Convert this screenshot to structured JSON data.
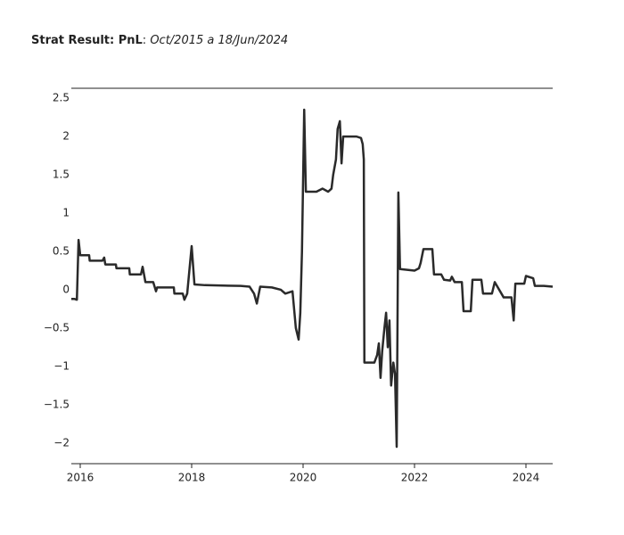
{
  "chart_data": {
    "type": "line",
    "title_parts": [
      "Strat Result: PnL",
      ": ",
      "Oct/2015 a 18/Jun/2024"
    ],
    "x": [
      2015.84,
      2015.9,
      2015.94,
      2015.97,
      2016.0,
      2016.16,
      2016.17,
      2016.4,
      2016.43,
      2016.45,
      2016.64,
      2016.65,
      2016.88,
      2016.89,
      2017.09,
      2017.12,
      2017.17,
      2017.31,
      2017.36,
      2017.38,
      2017.68,
      2017.69,
      2017.84,
      2017.87,
      2017.92,
      2018.0,
      2018.05,
      2018.24,
      2018.88,
      2019.04,
      2019.12,
      2019.17,
      2019.23,
      2019.44,
      2019.6,
      2019.68,
      2019.81,
      2019.87,
      2019.92,
      2019.95,
      2019.98,
      2020.02,
      2020.05,
      2020.24,
      2020.35,
      2020.45,
      2020.51,
      2020.54,
      2020.59,
      2020.62,
      2020.66,
      2020.69,
      2020.72,
      2020.96,
      2021.04,
      2021.07,
      2021.09,
      2021.1,
      2021.28,
      2021.33,
      2021.36,
      2021.39,
      2021.42,
      2021.46,
      2021.49,
      2021.52,
      2021.55,
      2021.58,
      2021.62,
      2021.65,
      2021.68,
      2021.71,
      2021.74,
      2022.0,
      2022.08,
      2022.11,
      2022.16,
      2022.32,
      2022.35,
      2022.48,
      2022.53,
      2022.64,
      2022.67,
      2022.72,
      2022.85,
      2022.88,
      2023.01,
      2023.04,
      2023.2,
      2023.23,
      2023.39,
      2023.44,
      2023.6,
      2023.74,
      2023.78,
      2023.81,
      2023.97,
      2024.0,
      2024.13,
      2024.16,
      2024.32,
      2024.48
    ],
    "series": [
      {
        "color": "#2a2a2a",
        "values": [
          -0.12,
          -0.12,
          -0.13,
          0.65,
          0.45,
          0.45,
          0.38,
          0.38,
          0.42,
          0.33,
          0.33,
          0.28,
          0.28,
          0.2,
          0.2,
          0.3,
          0.1,
          0.1,
          -0.02,
          0.03,
          0.03,
          -0.05,
          -0.05,
          -0.13,
          -0.05,
          0.57,
          0.07,
          0.06,
          0.05,
          0.04,
          -0.05,
          -0.18,
          0.04,
          0.03,
          0.0,
          -0.05,
          -0.02,
          -0.5,
          -0.65,
          -0.3,
          0.5,
          2.35,
          1.28,
          1.28,
          1.32,
          1.28,
          1.32,
          1.5,
          1.7,
          2.1,
          2.2,
          1.65,
          2.0,
          2.0,
          1.98,
          1.9,
          1.7,
          -0.95,
          -0.95,
          -0.85,
          -0.7,
          -1.15,
          -0.8,
          -0.5,
          -0.3,
          -0.75,
          -0.4,
          -1.25,
          -0.95,
          -1.1,
          -2.05,
          1.27,
          0.27,
          0.25,
          0.28,
          0.35,
          0.53,
          0.53,
          0.2,
          0.2,
          0.13,
          0.12,
          0.17,
          0.1,
          0.1,
          -0.28,
          -0.28,
          0.13,
          0.13,
          -0.05,
          -0.05,
          0.1,
          -0.1,
          -0.1,
          -0.4,
          0.08,
          0.08,
          0.18,
          0.15,
          0.05,
          0.05,
          0.04
        ]
      }
    ],
    "xlim": [
      2015.84,
      2024.48
    ],
    "xticks": [
      2016,
      2018,
      2020,
      2022,
      2024
    ],
    "ylim": [
      -2.27,
      2.63
    ],
    "yticks": [
      2.5,
      2,
      1.5,
      1,
      0.5,
      0,
      {
        "value": -0.5,
        "label": "−0.5"
      },
      {
        "value": -1,
        "label": "−1"
      },
      {
        "value": -1.5,
        "label": "−1.5"
      },
      {
        "value": -2,
        "label": "−2"
      }
    ]
  }
}
